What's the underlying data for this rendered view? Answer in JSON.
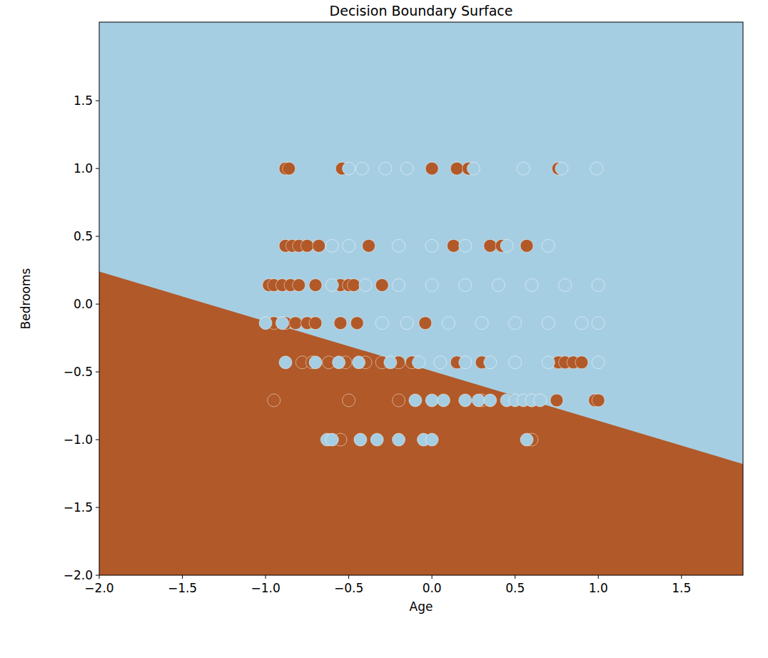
{
  "chart_data": {
    "type": "scatter",
    "title": "Decision Boundary Surface",
    "x_label": "Age",
    "y_label": "Bedrooms",
    "xlim": [
      -2,
      1.87
    ],
    "ylim": [
      -2,
      2.08
    ],
    "xticks": [
      {
        "value": -2,
        "label": "−2.0"
      },
      {
        "value": -1.5,
        "label": "−1.5"
      },
      {
        "value": -1,
        "label": "−1.0"
      },
      {
        "value": -0.5,
        "label": "−0.5"
      },
      {
        "value": 0,
        "label": "0.0"
      },
      {
        "value": 0.5,
        "label": "0.5"
      },
      {
        "value": 1,
        "label": "1.0"
      },
      {
        "value": 1.5,
        "label": "1.5"
      }
    ],
    "yticks": [
      {
        "value": -2,
        "label": "−2.0"
      },
      {
        "value": -1.5,
        "label": "−1.5"
      },
      {
        "value": -1,
        "label": "−1.0"
      },
      {
        "value": -0.5,
        "label": "−0.5"
      },
      {
        "value": 0,
        "label": "0.0"
      },
      {
        "value": 0.5,
        "label": "0.5"
      },
      {
        "value": 1,
        "label": "1.0"
      },
      {
        "value": 1.5,
        "label": "1.5"
      }
    ],
    "grid": false,
    "boundary": {
      "x": [
        -2,
        1.87
      ],
      "y": [
        0.24,
        -1.18
      ]
    },
    "series": [
      {
        "color": "#b15928",
        "marker": "circle",
        "x": [
          -0.88,
          -0.86,
          -0.54,
          0.0,
          0.15,
          0.22,
          0.76,
          -0.88,
          -0.84,
          -0.8,
          -0.75,
          -0.68,
          -0.38,
          0.13,
          0.35,
          0.42,
          0.57,
          -0.98,
          -0.95,
          -0.9,
          -0.85,
          -0.8,
          -0.7,
          -0.55,
          -0.5,
          -0.47,
          -0.3,
          -0.95,
          -0.88,
          -0.82,
          -0.75,
          -0.7,
          -0.55,
          -0.45,
          -0.04,
          -0.78,
          -0.72,
          -0.62,
          -0.52,
          -0.4,
          -0.3,
          -0.2,
          -0.12,
          0.15,
          0.3,
          0.76,
          0.8,
          0.85,
          0.9,
          -0.95,
          -0.5,
          -0.2,
          0.3,
          0.6,
          0.75,
          0.98,
          1.0,
          -0.55,
          0.6
        ],
        "values": [
          1,
          1,
          1,
          1,
          1,
          1,
          1,
          0.43,
          0.43,
          0.43,
          0.43,
          0.43,
          0.43,
          0.43,
          0.43,
          0.43,
          0.43,
          0.14,
          0.14,
          0.14,
          0.14,
          0.14,
          0.14,
          0.14,
          0.14,
          0.14,
          0.14,
          -0.14,
          -0.14,
          -0.14,
          -0.14,
          -0.14,
          -0.14,
          -0.14,
          -0.14,
          -0.43,
          -0.43,
          -0.43,
          -0.43,
          -0.43,
          -0.43,
          -0.43,
          -0.43,
          -0.43,
          -0.43,
          -0.43,
          -0.43,
          -0.43,
          -0.43,
          -0.71,
          -0.71,
          -0.71,
          -0.71,
          -0.71,
          -0.71,
          -0.71,
          -0.71,
          -1,
          -1
        ]
      },
      {
        "color": "#a6cee3",
        "marker": "circle",
        "x": [
          -0.5,
          -0.42,
          -0.28,
          -0.15,
          0.25,
          0.55,
          0.78,
          0.99,
          -0.6,
          -0.5,
          -0.2,
          0.0,
          0.2,
          0.45,
          0.7,
          -0.6,
          -0.4,
          -0.2,
          0.0,
          0.2,
          0.4,
          0.6,
          0.8,
          1.0,
          -1.0,
          -0.9,
          -0.3,
          -0.15,
          0.1,
          0.3,
          0.5,
          0.7,
          0.9,
          1.0,
          -0.88,
          -0.7,
          -0.56,
          -0.44,
          -0.25,
          -0.08,
          0.05,
          0.2,
          0.35,
          0.5,
          0.7,
          1.0,
          -0.1,
          0.0,
          0.07,
          0.2,
          0.28,
          0.35,
          0.45,
          0.5,
          0.55,
          0.6,
          0.65,
          -0.63,
          -0.6,
          -0.43,
          -0.33,
          -0.2,
          -0.05,
          0.0,
          0.57
        ],
        "values": [
          1,
          1,
          1,
          1,
          1,
          1,
          1,
          1,
          0.43,
          0.43,
          0.43,
          0.43,
          0.43,
          0.43,
          0.43,
          0.14,
          0.14,
          0.14,
          0.14,
          0.14,
          0.14,
          0.14,
          0.14,
          0.14,
          -0.14,
          -0.14,
          -0.14,
          -0.14,
          -0.14,
          -0.14,
          -0.14,
          -0.14,
          -0.14,
          -0.14,
          -0.43,
          -0.43,
          -0.43,
          -0.43,
          -0.43,
          -0.43,
          -0.43,
          -0.43,
          -0.43,
          -0.43,
          -0.43,
          -0.43,
          -0.71,
          -0.71,
          -0.71,
          -0.71,
          -0.71,
          -0.71,
          -0.71,
          -0.71,
          -0.71,
          -0.71,
          -0.71,
          -1,
          -1,
          -1,
          -1,
          -1,
          -1,
          -1,
          -1
        ]
      }
    ]
  }
}
